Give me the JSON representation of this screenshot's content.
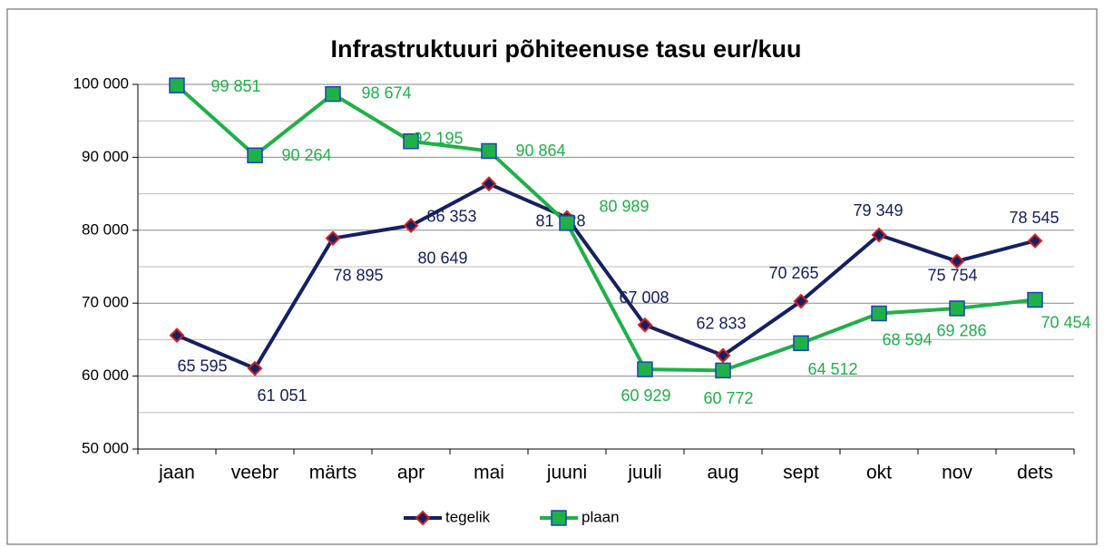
{
  "chart_data": {
    "type": "line",
    "title": "Infrastruktuuri põhiteenuse tasu eur/kuu",
    "categories": [
      "jaan",
      "veebr",
      "märts",
      "apr",
      "mai",
      "juuni",
      "juuli",
      "aug",
      "sept",
      "okt",
      "nov",
      "dets"
    ],
    "series": [
      {
        "name": "tegelik",
        "color": "#142060",
        "marker_color": "#d42020",
        "values": [
          65595,
          61051,
          78895,
          80649,
          86353,
          81728,
          67008,
          62833,
          70265,
          79349,
          75754,
          78545
        ],
        "value_labels": [
          "65 595",
          "61 051",
          "78 895",
          "80 649",
          "86 353",
          "81 728",
          "67 008",
          "62 833",
          "70 265",
          "79 349",
          "75 754",
          "78 545"
        ]
      },
      {
        "name": "plaan",
        "color": "#1fb048",
        "marker_color": "#1f3fc0",
        "values": [
          99851,
          90264,
          98674,
          92195,
          90864,
          80989,
          60929,
          60772,
          64512,
          68594,
          69286,
          70454
        ],
        "value_labels": [
          "99 851",
          "90 264",
          "98 674",
          "92 195",
          "90 864",
          "80 989",
          "60 929",
          "60 772",
          "64 512",
          "68 594",
          "69 286",
          "70 454"
        ]
      }
    ],
    "ylim": [
      50000,
      100000
    ],
    "yticks": [
      {
        "value": 50000,
        "label": "50 000"
      },
      {
        "value": 60000,
        "label": "60 000"
      },
      {
        "value": 70000,
        "label": "70 000"
      },
      {
        "value": 80000,
        "label": "80 000"
      },
      {
        "value": 90000,
        "label": "90 000"
      },
      {
        "value": 100000,
        "label": "100 000"
      }
    ],
    "minor_yticks": [
      55000,
      65000,
      75000,
      85000,
      95000
    ],
    "grid": true,
    "legend": "bottom"
  }
}
